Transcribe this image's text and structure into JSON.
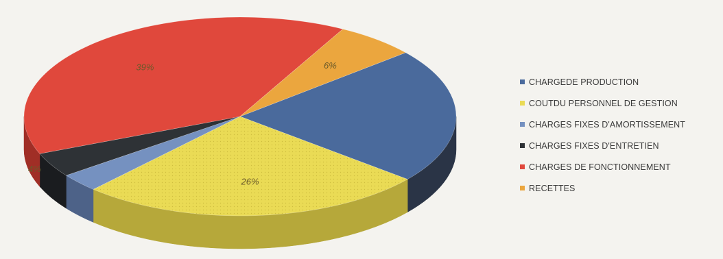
{
  "chart_data": {
    "type": "pie",
    "title": "",
    "slices": [
      {
        "name": "CHARGEDE PRODUCTION",
        "value": 22,
        "label": "22%",
        "color": "#4a6a9c",
        "side": "#2a3446",
        "label_visible": false
      },
      {
        "name": "COUTDU PERSONNEL DE GESTION",
        "value": 26,
        "label": "26%",
        "color": "#eadb55",
        "side": "#b6a83a",
        "label_visible": true
      },
      {
        "name": "CHARGES FIXES D'AMORTISSEMENT",
        "value": 3,
        "label": "3%",
        "color": "#7591c0",
        "side": "#4d6288",
        "label_visible": false
      },
      {
        "name": "CHARGES FIXES D'ENTRETIEN",
        "value": 4,
        "label": "4%",
        "color": "#2e3236",
        "side": "#1a1c1f",
        "label_visible": true
      },
      {
        "name": "CHARGES DE FONCTIONNEMENT",
        "value": 39,
        "label": "39%",
        "color": "#e0483c",
        "side": "#a02e26",
        "label_visible": true
      },
      {
        "name": "RECETTES",
        "value": 6,
        "label": "6%",
        "color": "#eba63e",
        "side": "#b07a28",
        "label_visible": true
      }
    ],
    "legend_position": "right"
  }
}
